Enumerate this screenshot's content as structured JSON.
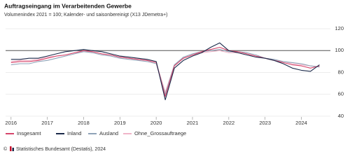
{
  "chart_data": {
    "type": "line",
    "title": "Auftragseingang im Verarbeitenden Gewerbe",
    "subtitle": "Volumenindex 2021 = 100; Kalender- und saisonbereinigt (X13 JDemetra+)",
    "source": "Statistisches Bundesamt (Destatis), 2024",
    "x": [
      2016,
      2016.25,
      2016.5,
      2016.75,
      2017,
      2017.25,
      2017.5,
      2017.75,
      2018,
      2018.25,
      2018.5,
      2018.75,
      2019,
      2019.25,
      2019.5,
      2019.75,
      2020,
      2020.25,
      2020.5,
      2020.75,
      2021,
      2021.25,
      2021.5,
      2021.75,
      2022,
      2022.25,
      2022.5,
      2022.75,
      2023,
      2023.25,
      2023.5,
      2023.75,
      2024,
      2024.25,
      2024.5
    ],
    "xlim": [
      2015.85,
      2024.8
    ],
    "xticks": [
      2016,
      2017,
      2018,
      2019,
      2020,
      2021,
      2022,
      2023,
      2024
    ],
    "ylim": [
      40,
      120
    ],
    "yticks": [
      40,
      60,
      80,
      100,
      120
    ],
    "reference_line": 100,
    "grid": true,
    "series": [
      {
        "name": "Insgesamt",
        "color": "#d6456b",
        "values": [
          89,
          90,
          90,
          91,
          93,
          95,
          96,
          98,
          100,
          99,
          97,
          96,
          94,
          93,
          92,
          91,
          89,
          58,
          86,
          93,
          96,
          99,
          101,
          103,
          100,
          99,
          97,
          95,
          93,
          91,
          89,
          87,
          86,
          84,
          86
        ]
      },
      {
        "name": "Inland",
        "color": "#1b2a4a",
        "values": [
          92,
          92,
          93,
          93,
          95,
          97,
          99,
          100,
          101,
          100,
          99,
          97,
          95,
          94,
          93,
          92,
          90,
          55,
          84,
          91,
          95,
          98,
          103,
          107,
          100,
          98,
          96,
          94,
          93,
          91,
          88,
          84,
          82,
          81,
          87
        ]
      },
      {
        "name": "Ausland",
        "color": "#8fa3b8",
        "values": [
          87,
          88,
          88,
          90,
          91,
          93,
          95,
          97,
          99,
          98,
          96,
          95,
          93,
          92,
          91,
          90,
          88,
          60,
          87,
          94,
          97,
          99,
          100,
          101,
          99,
          99,
          98,
          96,
          93,
          92,
          90,
          89,
          88,
          86,
          85
        ]
      },
      {
        "name": "Ohne_Grossauftraege",
        "color": "#f0b5c8",
        "values": [
          90,
          91,
          91,
          92,
          94,
          95,
          96,
          98,
          99,
          99,
          97,
          96,
          94,
          93,
          92,
          91,
          89,
          62,
          87,
          93,
          96,
          98,
          99,
          100,
          98,
          98,
          96,
          95,
          93,
          91,
          90,
          88,
          87,
          86,
          85
        ]
      }
    ]
  }
}
